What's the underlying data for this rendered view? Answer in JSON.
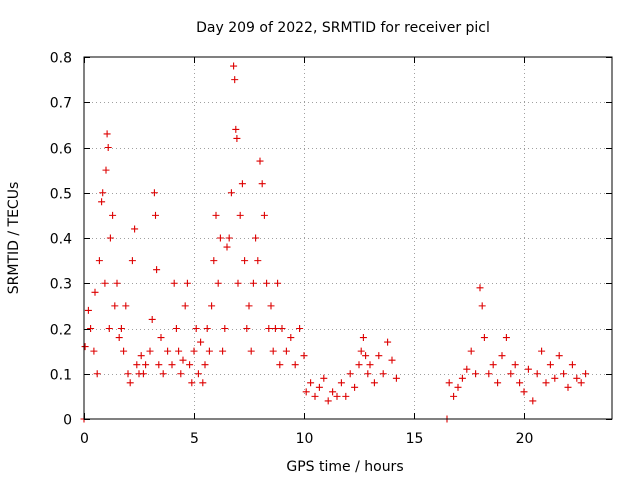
{
  "chart_data": {
    "type": "scatter",
    "title": "Day 209 of 2022, SRMTID for receiver picl",
    "xlabel": "GPS time / hours",
    "ylabel": "SRMTID / TECUs",
    "xlim": [
      0,
      24
    ],
    "ylim": [
      0,
      0.8
    ],
    "xticks": [
      0,
      5,
      10,
      15,
      20
    ],
    "yticks": [
      0,
      0.1,
      0.2,
      0.3,
      0.4,
      0.5,
      0.6,
      0.7,
      0.8
    ],
    "xtick_labels": [
      "0",
      "5",
      "10",
      "15",
      "20"
    ],
    "ytick_labels": [
      "0",
      "0.1",
      "0.2",
      "0.3",
      "0.4",
      "0.5",
      "0.6",
      "0.7",
      "0.8"
    ],
    "grid": true,
    "marker": "plus",
    "color": "#dd0000",
    "series": [
      {
        "name": "SRMTID",
        "points": [
          [
            0.0,
            0.0
          ],
          [
            16.5,
            0.0
          ],
          [
            0.05,
            0.16
          ],
          [
            0.2,
            0.24
          ],
          [
            0.3,
            0.2
          ],
          [
            0.45,
            0.15
          ],
          [
            0.5,
            0.28
          ],
          [
            0.6,
            0.1
          ],
          [
            0.7,
            0.35
          ],
          [
            0.8,
            0.48
          ],
          [
            0.85,
            0.5
          ],
          [
            0.95,
            0.3
          ],
          [
            1.0,
            0.55
          ],
          [
            1.05,
            0.63
          ],
          [
            1.1,
            0.6
          ],
          [
            1.15,
            0.2
          ],
          [
            1.2,
            0.4
          ],
          [
            1.3,
            0.45
          ],
          [
            1.4,
            0.25
          ],
          [
            1.5,
            0.3
          ],
          [
            1.6,
            0.18
          ],
          [
            1.7,
            0.2
          ],
          [
            1.8,
            0.15
          ],
          [
            1.9,
            0.25
          ],
          [
            2.0,
            0.1
          ],
          [
            2.1,
            0.08
          ],
          [
            2.2,
            0.35
          ],
          [
            2.3,
            0.42
          ],
          [
            2.4,
            0.12
          ],
          [
            2.5,
            0.1
          ],
          [
            2.6,
            0.14
          ],
          [
            2.7,
            0.1
          ],
          [
            2.8,
            0.12
          ],
          [
            3.0,
            0.15
          ],
          [
            3.1,
            0.22
          ],
          [
            3.2,
            0.5
          ],
          [
            3.25,
            0.45
          ],
          [
            3.3,
            0.33
          ],
          [
            3.4,
            0.12
          ],
          [
            3.5,
            0.18
          ],
          [
            3.6,
            0.1
          ],
          [
            3.8,
            0.15
          ],
          [
            4.0,
            0.12
          ],
          [
            4.1,
            0.3
          ],
          [
            4.2,
            0.2
          ],
          [
            4.3,
            0.15
          ],
          [
            4.4,
            0.1
          ],
          [
            4.5,
            0.13
          ],
          [
            4.6,
            0.25
          ],
          [
            4.7,
            0.3
          ],
          [
            4.8,
            0.12
          ],
          [
            4.9,
            0.08
          ],
          [
            5.0,
            0.15
          ],
          [
            5.1,
            0.2
          ],
          [
            5.2,
            0.1
          ],
          [
            5.3,
            0.17
          ],
          [
            5.4,
            0.08
          ],
          [
            5.5,
            0.12
          ],
          [
            5.6,
            0.2
          ],
          [
            5.7,
            0.15
          ],
          [
            5.8,
            0.25
          ],
          [
            5.9,
            0.35
          ],
          [
            6.0,
            0.45
          ],
          [
            6.1,
            0.3
          ],
          [
            6.2,
            0.4
          ],
          [
            6.3,
            0.15
          ],
          [
            6.4,
            0.2
          ],
          [
            6.5,
            0.38
          ],
          [
            6.6,
            0.4
          ],
          [
            6.7,
            0.5
          ],
          [
            6.8,
            0.78
          ],
          [
            6.85,
            0.75
          ],
          [
            6.9,
            0.64
          ],
          [
            6.95,
            0.62
          ],
          [
            7.0,
            0.3
          ],
          [
            7.1,
            0.45
          ],
          [
            7.2,
            0.52
          ],
          [
            7.3,
            0.35
          ],
          [
            7.4,
            0.2
          ],
          [
            7.5,
            0.25
          ],
          [
            7.6,
            0.15
          ],
          [
            7.7,
            0.3
          ],
          [
            7.8,
            0.4
          ],
          [
            7.9,
            0.35
          ],
          [
            8.0,
            0.57
          ],
          [
            8.1,
            0.52
          ],
          [
            8.2,
            0.45
          ],
          [
            8.3,
            0.3
          ],
          [
            8.4,
            0.2
          ],
          [
            8.5,
            0.25
          ],
          [
            8.6,
            0.15
          ],
          [
            8.7,
            0.2
          ],
          [
            8.8,
            0.3
          ],
          [
            8.9,
            0.12
          ],
          [
            9.0,
            0.2
          ],
          [
            9.2,
            0.15
          ],
          [
            9.4,
            0.18
          ],
          [
            9.6,
            0.12
          ],
          [
            9.8,
            0.2
          ],
          [
            10.0,
            0.14
          ],
          [
            10.1,
            0.06
          ],
          [
            10.3,
            0.08
          ],
          [
            10.5,
            0.05
          ],
          [
            10.7,
            0.07
          ],
          [
            10.9,
            0.09
          ],
          [
            11.1,
            0.04
          ],
          [
            11.3,
            0.06
          ],
          [
            11.5,
            0.05
          ],
          [
            11.7,
            0.08
          ],
          [
            11.9,
            0.05
          ],
          [
            12.1,
            0.1
          ],
          [
            12.3,
            0.07
          ],
          [
            12.5,
            0.12
          ],
          [
            12.6,
            0.15
          ],
          [
            12.7,
            0.18
          ],
          [
            12.8,
            0.14
          ],
          [
            12.9,
            0.1
          ],
          [
            13.0,
            0.12
          ],
          [
            13.2,
            0.08
          ],
          [
            13.4,
            0.14
          ],
          [
            13.6,
            0.1
          ],
          [
            13.8,
            0.17
          ],
          [
            14.0,
            0.13
          ],
          [
            14.2,
            0.09
          ],
          [
            16.6,
            0.08
          ],
          [
            16.8,
            0.05
          ],
          [
            17.0,
            0.07
          ],
          [
            17.2,
            0.09
          ],
          [
            17.4,
            0.11
          ],
          [
            17.6,
            0.15
          ],
          [
            17.8,
            0.1
          ],
          [
            18.0,
            0.29
          ],
          [
            18.1,
            0.25
          ],
          [
            18.2,
            0.18
          ],
          [
            18.4,
            0.1
          ],
          [
            18.6,
            0.12
          ],
          [
            18.8,
            0.08
          ],
          [
            19.0,
            0.14
          ],
          [
            19.2,
            0.18
          ],
          [
            19.4,
            0.1
          ],
          [
            19.6,
            0.12
          ],
          [
            19.8,
            0.08
          ],
          [
            20.0,
            0.06
          ],
          [
            20.2,
            0.11
          ],
          [
            20.4,
            0.04
          ],
          [
            20.6,
            0.1
          ],
          [
            20.8,
            0.15
          ],
          [
            21.0,
            0.08
          ],
          [
            21.2,
            0.12
          ],
          [
            21.4,
            0.09
          ],
          [
            21.6,
            0.14
          ],
          [
            21.8,
            0.1
          ],
          [
            22.0,
            0.07
          ],
          [
            22.2,
            0.12
          ],
          [
            22.4,
            0.09
          ],
          [
            22.6,
            0.08
          ],
          [
            22.8,
            0.1
          ]
        ]
      }
    ]
  }
}
